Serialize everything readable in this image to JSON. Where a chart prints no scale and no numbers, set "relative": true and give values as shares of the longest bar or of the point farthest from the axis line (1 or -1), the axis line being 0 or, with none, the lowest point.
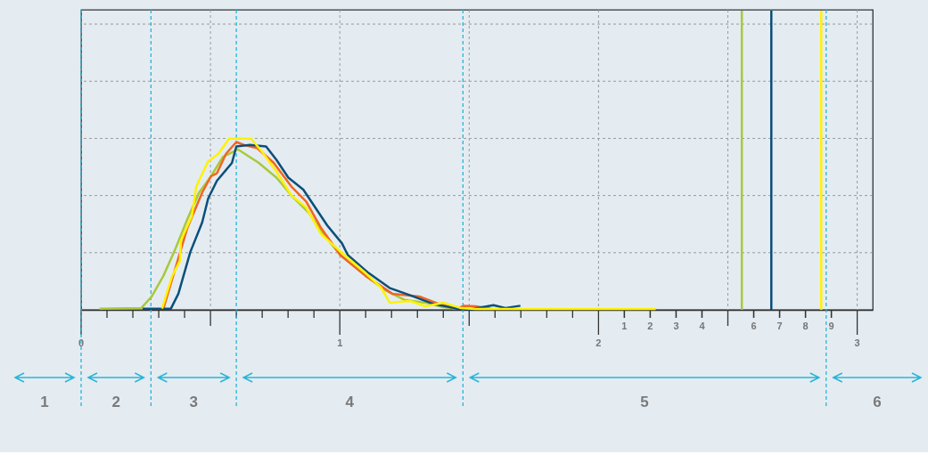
{
  "chart_data": {
    "type": "line",
    "relative": true,
    "xlim": [
      0,
      3.06
    ],
    "xticks": [
      0,
      {
        "value": 0.1,
        "label": null
      },
      {
        "value": 0.2,
        "label": null
      },
      {
        "value": 0.3,
        "label": null
      },
      {
        "value": 0.4,
        "label": null
      },
      {
        "value": 0.5,
        "label": null
      },
      {
        "value": 0.6,
        "label": null
      },
      {
        "value": 0.7,
        "label": null
      },
      {
        "value": 0.8,
        "label": null
      },
      {
        "value": 0.9,
        "label": null
      },
      1,
      {
        "value": 1.1,
        "label": null
      },
      {
        "value": 1.2,
        "label": null
      },
      {
        "value": 1.3,
        "label": null
      },
      {
        "value": 1.4,
        "label": null
      },
      {
        "value": 1.5,
        "label": null
      },
      {
        "value": 1.6,
        "label": null
      },
      {
        "value": 1.7,
        "label": null
      },
      {
        "value": 1.8,
        "label": null
      },
      {
        "value": 1.9,
        "label": null
      },
      2,
      {
        "value": 2.1,
        "label": null
      },
      {
        "value": 2.2,
        "label": null
      },
      {
        "value": 2.3,
        "label": null
      },
      {
        "value": 2.4,
        "label": null
      },
      {
        "value": 2.5,
        "label": null
      },
      {
        "value": 2.6,
        "label": null
      },
      {
        "value": 2.7,
        "label": null
      },
      {
        "value": 2.8,
        "label": null
      },
      {
        "value": 2.9,
        "label": null
      },
      3
    ],
    "x2lim": [
      -20,
      10.6
    ],
    "x2ticks": [
      1,
      2,
      3,
      4,
      6,
      7,
      8,
      9
    ],
    "grid": true,
    "line_style": "solid",
    "marker": "none",
    "series": [
      {
        "color": "#a8c93a",
        "x": [
          0.071,
          0.232,
          0.272,
          0.318,
          0.364,
          0.41,
          0.456,
          0.502,
          0.548,
          0.606,
          0.686,
          0.755,
          0.813,
          0.882,
          0.928,
          1.002,
          1.1,
          1.18,
          1.249,
          1.33,
          1.399,
          1.456
        ],
        "values": [
          0.007,
          0.01,
          0.076,
          0.198,
          0.354,
          0.527,
          0.684,
          0.779,
          0.892,
          0.936,
          0.858,
          0.771,
          0.667,
          0.563,
          0.458,
          0.319,
          0.198,
          0.111,
          0.059,
          0.042,
          0.016,
          0.007
        ]
      },
      {
        "color": "#f26522",
        "x": [
          0.318,
          0.359,
          0.41,
          0.468,
          0.502,
          0.525,
          0.56,
          0.6,
          0.629,
          0.68,
          0.744,
          0.813,
          0.87,
          0.928,
          1.002,
          1.1,
          1.203,
          1.307,
          1.386,
          1.455,
          1.479,
          1.524,
          1.583
        ],
        "values": [
          0.007,
          0.215,
          0.475,
          0.684,
          0.779,
          0.797,
          0.91,
          0.979,
          0.962,
          0.944,
          0.858,
          0.719,
          0.632,
          0.476,
          0.319,
          0.198,
          0.094,
          0.078,
          0.033,
          0.007,
          0.024,
          0.021,
          0.007
        ]
      },
      {
        "color": "#0b4f7a",
        "x": [
          0.238,
          0.347,
          0.376,
          0.422,
          0.468,
          0.491,
          0.525,
          0.583,
          0.6,
          0.652,
          0.715,
          0.755,
          0.801,
          0.859,
          0.951,
          1.008,
          1.031,
          1.111,
          1.192,
          1.272,
          1.364,
          1.456,
          1.502,
          1.594,
          1.64,
          1.698
        ],
        "values": [
          0.007,
          0.007,
          0.094,
          0.337,
          0.51,
          0.649,
          0.753,
          0.857,
          0.953,
          0.962,
          0.953,
          0.875,
          0.771,
          0.701,
          0.493,
          0.389,
          0.319,
          0.215,
          0.128,
          0.085,
          0.033,
          0.007,
          0.003,
          0.027,
          0.01,
          0.024
        ]
      },
      {
        "color": "#fff200",
        "x": [
          0.313,
          0.352,
          0.382,
          0.386,
          0.428,
          0.445,
          0.49,
          0.531,
          0.571,
          0.606,
          0.658,
          0.697,
          0.755,
          0.813,
          0.869,
          0.927,
          1.003,
          1.1,
          1.159,
          1.193,
          1.272,
          1.331,
          1.4,
          1.469,
          1.524,
          2.221
        ],
        "values": [
          0.007,
          0.198,
          0.286,
          0.406,
          0.547,
          0.719,
          0.865,
          0.911,
          0.997,
          1,
          0.997,
          0.927,
          0.807,
          0.667,
          0.599,
          0.443,
          0.339,
          0.214,
          0.13,
          0.042,
          0.052,
          0.021,
          0.042,
          0.01,
          0.005,
          0.005
        ]
      }
    ],
    "ref_lines": [
      {
        "axis": "x",
        "value": 0,
        "color": "#29b5d6",
        "line_style": "dashed"
      },
      {
        "axis": "x",
        "value": 0.27,
        "color": "#29b5d6",
        "line_style": "dashed"
      },
      {
        "axis": "x",
        "value": 0.6,
        "color": "#29b5d6",
        "line_style": "dashed"
      },
      {
        "axis": "x",
        "value": 1.476,
        "color": "#29b5d6",
        "line_style": "dashed"
      },
      {
        "axis": "x",
        "value": 2.88,
        "color": "#29b5d6",
        "line_style": "dashed"
      },
      {
        "axis": "x",
        "value": 2.554,
        "color": "#a8c93a",
        "line_style": "solid"
      },
      {
        "axis": "x",
        "value": 2.668,
        "color": "#0b4f7a",
        "line_style": "solid"
      },
      {
        "axis": "x",
        "value": 2.861,
        "color": "#fff200",
        "line_style": "solid"
      }
    ],
    "annotations": [
      "1",
      "2",
      "3",
      "4",
      "5",
      "6"
    ]
  }
}
